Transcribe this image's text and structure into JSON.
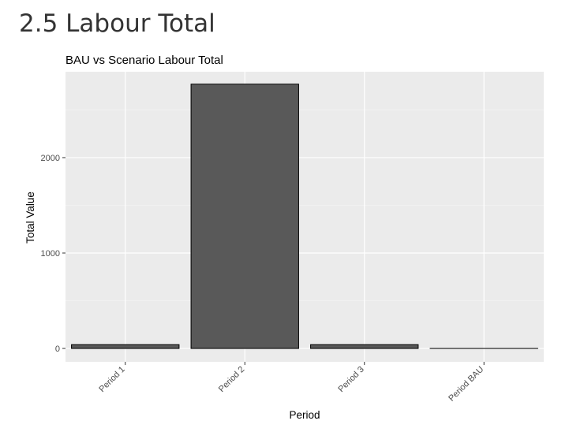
{
  "page": {
    "section_title": "2.5 Labour Total"
  },
  "chart_data": {
    "type": "bar",
    "title": "BAU vs Scenario Labour Total",
    "xlabel": "Period",
    "ylabel": "Total Value",
    "categories": [
      "Period 1",
      "Period 2",
      "Period 3",
      "Period BAU"
    ],
    "values": [
      40,
      2770,
      40,
      0
    ],
    "ylim": [
      -140,
      2900
    ],
    "yticks": [
      0,
      1000,
      2000
    ],
    "grid": true,
    "legend": "none",
    "colors": {
      "bar_fill": "#595959",
      "bar_stroke": "#000000",
      "panel_bg": "#ebebeb",
      "grid_major": "#ffffff",
      "grid_minor": "#f5f5f5"
    }
  }
}
